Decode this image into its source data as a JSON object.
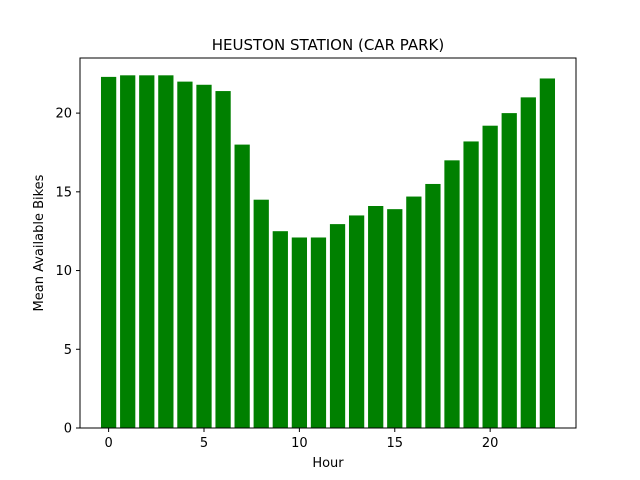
{
  "chart_data": {
    "type": "bar",
    "title": "HEUSTON STATION (CAR PARK)",
    "xlabel": "Hour",
    "ylabel": "Mean Available Bikes",
    "x": [
      0,
      1,
      2,
      3,
      4,
      5,
      6,
      7,
      8,
      9,
      10,
      11,
      12,
      13,
      14,
      15,
      16,
      17,
      18,
      19,
      20,
      21,
      22,
      23
    ],
    "values": [
      22.3,
      22.4,
      22.4,
      22.4,
      22.0,
      21.8,
      21.4,
      18.0,
      14.5,
      12.5,
      12.1,
      12.1,
      12.95,
      13.5,
      14.1,
      13.9,
      14.7,
      15.5,
      17.0,
      18.2,
      19.2,
      20.0,
      21.0,
      22.2
    ],
    "xlim": [
      -1.5,
      24.5
    ],
    "ylim": [
      0,
      23.5
    ],
    "xticks": [
      0,
      5,
      10,
      15,
      20
    ],
    "xtick_labels": [
      "0",
      "5",
      "10",
      "15",
      "20"
    ],
    "yticks": [
      0,
      5,
      10,
      15,
      20
    ],
    "ytick_labels": [
      "0",
      "5",
      "10",
      "15",
      "20"
    ],
    "bar_color": "#008000",
    "grid": false,
    "legend": false
  }
}
